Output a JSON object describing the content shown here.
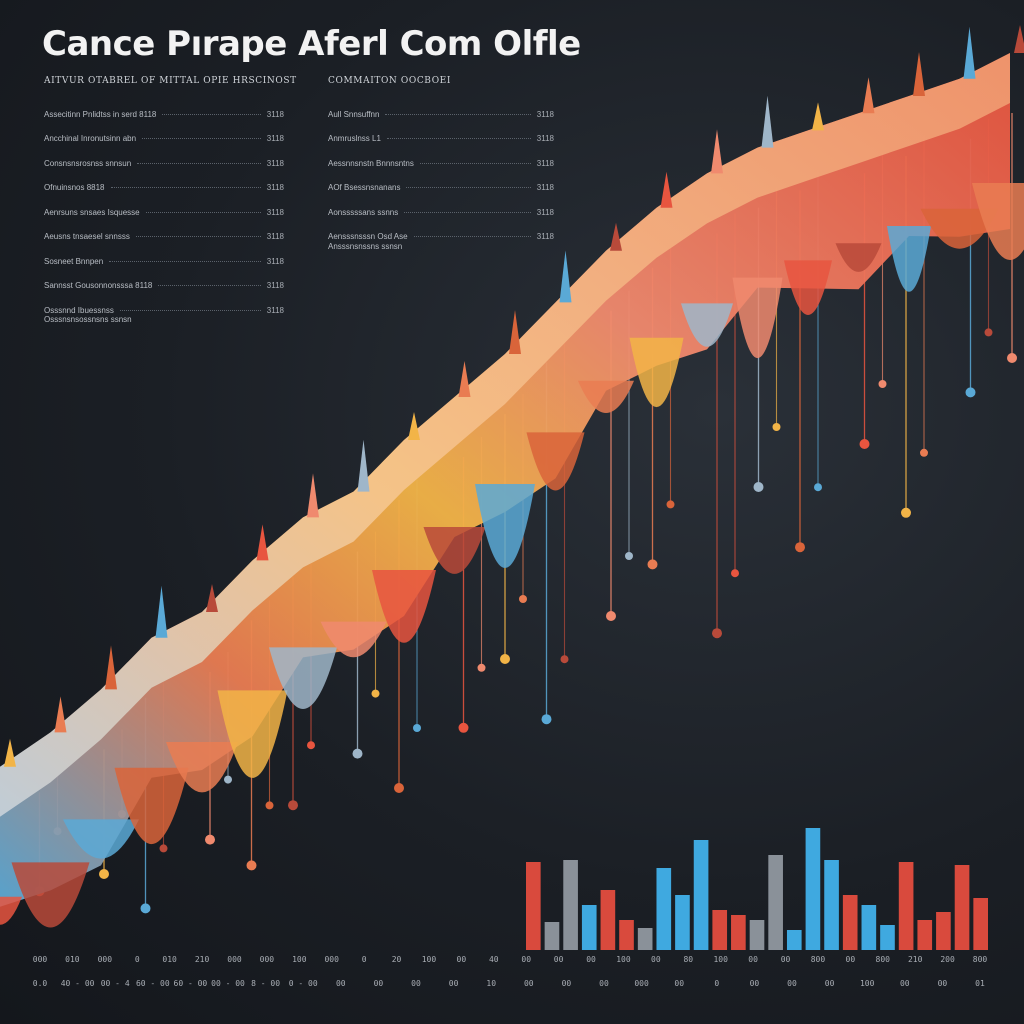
{
  "title": "Cance Pırape Aferl Com Olfle",
  "legend_left": {
    "heading": "AITVUR OTABREL OF MITTAL OPIE HRSCINOST",
    "rows": [
      {
        "label": "Assecitinn Pnlidtss in serd 8118",
        "value": "3118"
      },
      {
        "label": "Ancchinal Inronutsinn abn",
        "value": "3118"
      },
      {
        "label": "Consnsnsrosnss snnsun",
        "value": "3118"
      },
      {
        "label": "Ofnuinsnos 8818",
        "value": "3118"
      },
      {
        "label": "Aenrsuns snsaes Isquesse",
        "value": "3118"
      },
      {
        "label": "Aeusns tnsaesel snnsss",
        "value": "3118"
      },
      {
        "label": "Sosneet Bnnpen",
        "value": "3118"
      },
      {
        "label": "Sannsst Gousonnonsssa 8118",
        "value": "3118"
      },
      {
        "label": "Osssnnd Ibuessnss",
        "value": "3118"
      }
    ],
    "footer": "Osssnsnsossnsns ssnsn"
  },
  "legend_right": {
    "heading": "COMMAITON OOCBOEI",
    "rows": [
      {
        "label": "Aull Snnsuffnn",
        "value": "3118"
      },
      {
        "label": "Anmruslnss L1",
        "value": "3118"
      },
      {
        "label": "Aessnnsnstn Bnnnsntns",
        "value": "3118"
      },
      {
        "label": "AOf Bsessnsnanans",
        "value": "3118"
      },
      {
        "label": "Aonsssssans ssnns",
        "value": "3118"
      },
      {
        "label": "Aensssnsssn Osd Ase",
        "value": "3118"
      }
    ],
    "footer": "Ansssnsnssns ssnsn"
  },
  "axis": {
    "x_labels_top": [
      "000",
      "010",
      "000",
      "0",
      "010",
      "210",
      "000",
      "000",
      "100",
      "000",
      "0",
      "20",
      "100",
      "00",
      "40",
      "00",
      "00",
      "00",
      "100",
      "00",
      "80",
      "100",
      "00",
      "00",
      "800",
      "00",
      "800",
      "210",
      "200",
      "800"
    ],
    "x_labels_bottom": [
      "0.0",
      "40 - 00",
      "00 - 4",
      "60 - 00",
      "60 - 00",
      "00 - 00",
      "8 - 00",
      "0 - 00",
      "00",
      "00",
      "00",
      "00",
      "10",
      "00",
      "00",
      "00",
      "000",
      "00",
      "0",
      "00",
      "00",
      "00",
      "100",
      "00",
      "00",
      "01"
    ]
  },
  "chart_data": {
    "type": "bar",
    "title": "Cance Pırape Aferl Com Olfle",
    "xlabel": "",
    "ylabel": "",
    "ylim": [
      0,
      130
    ],
    "grid": false,
    "legend_position": "top-left",
    "colors": [
      "#d94a3d",
      "#3fa9e0",
      "#8a9199",
      "#e8a23a",
      "#f07a5a"
    ],
    "bars": [
      {
        "value": 88,
        "color": "#d94a3d"
      },
      {
        "value": 28,
        "color": "#8a9199"
      },
      {
        "value": 90,
        "color": "#8a9199"
      },
      {
        "value": 45,
        "color": "#3fa9e0"
      },
      {
        "value": 60,
        "color": "#d94a3d"
      },
      {
        "value": 30,
        "color": "#d94a3d"
      },
      {
        "value": 22,
        "color": "#8a9199"
      },
      {
        "value": 82,
        "color": "#3fa9e0"
      },
      {
        "value": 55,
        "color": "#3fa9e0"
      },
      {
        "value": 110,
        "color": "#3fa9e0"
      },
      {
        "value": 40,
        "color": "#d94a3d"
      },
      {
        "value": 35,
        "color": "#d94a3d"
      },
      {
        "value": 30,
        "color": "#8a9199"
      },
      {
        "value": 95,
        "color": "#8a9199"
      },
      {
        "value": 20,
        "color": "#3fa9e0"
      },
      {
        "value": 122,
        "color": "#3fa9e0"
      },
      {
        "value": 90,
        "color": "#3fa9e0"
      },
      {
        "value": 55,
        "color": "#d94a3d"
      },
      {
        "value": 45,
        "color": "#3fa9e0"
      },
      {
        "value": 25,
        "color": "#3fa9e0"
      },
      {
        "value": 88,
        "color": "#d94a3d"
      },
      {
        "value": 30,
        "color": "#d94a3d"
      },
      {
        "value": 38,
        "color": "#d94a3d"
      },
      {
        "value": 85,
        "color": "#d94a3d"
      },
      {
        "value": 52,
        "color": "#d94a3d"
      }
    ],
    "trend_series": {
      "name": "",
      "x": [
        0,
        1,
        2,
        3,
        4,
        5,
        6,
        7,
        8,
        9,
        10,
        11,
        12,
        13,
        14,
        15,
        16,
        17,
        18,
        19,
        20
      ],
      "y": [
        12,
        16,
        21,
        27,
        30,
        36,
        41,
        44,
        50,
        55,
        60,
        66,
        72,
        77,
        81,
        84,
        86,
        88,
        90,
        92,
        95
      ]
    },
    "drops": [
      {
        "x": 1,
        "y": 8
      },
      {
        "x": 2,
        "y": 10
      },
      {
        "x": 3,
        "y": 6
      },
      {
        "x": 4,
        "y": 14
      },
      {
        "x": 5,
        "y": 11
      },
      {
        "x": 6,
        "y": 18
      },
      {
        "x": 7,
        "y": 24
      },
      {
        "x": 8,
        "y": 20
      },
      {
        "x": 9,
        "y": 27
      },
      {
        "x": 10,
        "y": 35
      },
      {
        "x": 11,
        "y": 28
      },
      {
        "x": 12,
        "y": 40
      },
      {
        "x": 13,
        "y": 46
      },
      {
        "x": 14,
        "y": 38
      },
      {
        "x": 15,
        "y": 55
      },
      {
        "x": 16,
        "y": 48
      },
      {
        "x": 17,
        "y": 60
      },
      {
        "x": 18,
        "y": 52
      },
      {
        "x": 19,
        "y": 66
      },
      {
        "x": 20,
        "y": 70
      }
    ]
  }
}
